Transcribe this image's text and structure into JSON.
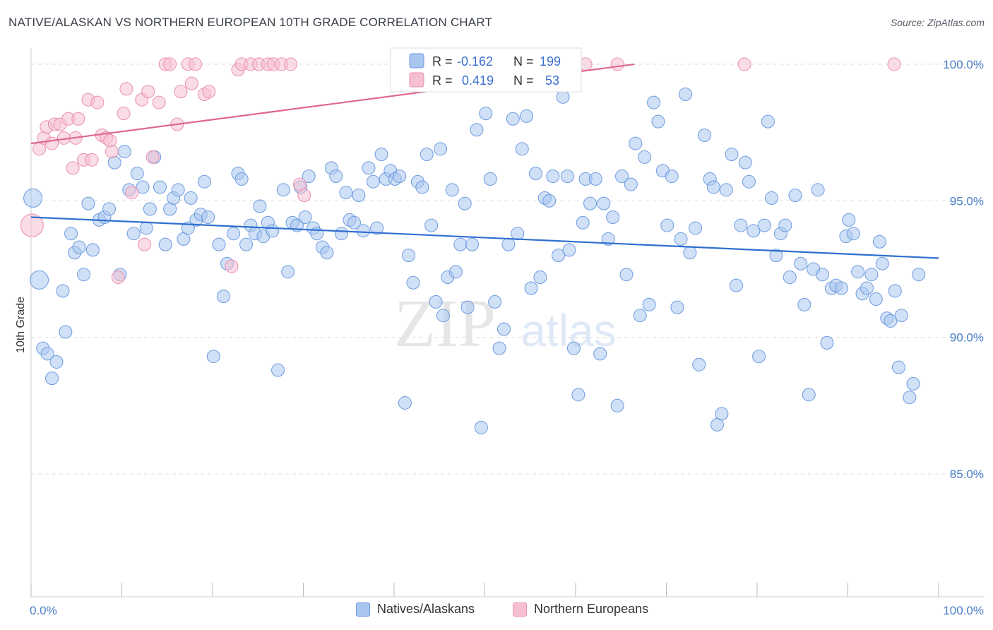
{
  "title": "NATIVE/ALASKAN VS NORTHERN EUROPEAN 10TH GRADE CORRELATION CHART",
  "source": "Source: ZipAtlas.com",
  "watermark": {
    "zip": "ZIP",
    "atlas": "atlas"
  },
  "colors": {
    "blue_fill": "#a9c6ef",
    "blue_stroke": "#6d9be0",
    "blue_line": "#2f6fcf",
    "pink_fill": "#f6bfd1",
    "pink_stroke": "#ea8fae",
    "pink_line": "#e0668f",
    "tick_text": "#4a7cc7",
    "grid": "#dddddd"
  },
  "legend_box": {
    "rows": [
      {
        "r_label": "R =",
        "r_value": "-0.162",
        "n_label": "N =",
        "n_value": "199"
      },
      {
        "r_label": "R =",
        "r_value": "0.419",
        "n_label": "N =",
        "n_value": "53"
      }
    ]
  },
  "bottom_legend": {
    "items": [
      "Natives/Alaskans",
      "Northern Europeans"
    ]
  },
  "chart_data": {
    "type": "scatter",
    "title": "NATIVE/ALASKAN VS NORTHERN EUROPEAN 10TH GRADE CORRELATION CHART",
    "xlabel": "",
    "ylabel": "10th Grade",
    "xlim": [
      0,
      100
    ],
    "ylim": [
      80.5,
      100.8
    ],
    "x_ticks": [
      0,
      10,
      20,
      30,
      40,
      50,
      60,
      70,
      80,
      90,
      100
    ],
    "x_tick_labels": {
      "min": "0.0%",
      "max": "100.0%"
    },
    "y_ticks": [
      85,
      90,
      95,
      100
    ],
    "y_tick_labels": [
      "85.0%",
      "90.0%",
      "95.0%",
      "100.0%"
    ],
    "grid": true,
    "legend": "top-center",
    "series": [
      {
        "name": "Natives/Alaskans",
        "R": -0.162,
        "N": 199,
        "trend": {
          "x": [
            0,
            100
          ],
          "y": [
            94.4,
            92.9
          ]
        },
        "points": [
          [
            0.2,
            95.1
          ],
          [
            0.9,
            92.1
          ],
          [
            1.3,
            89.6
          ],
          [
            1.8,
            89.4
          ],
          [
            2.3,
            88.5
          ],
          [
            2.8,
            89.1
          ],
          [
            3.5,
            91.7
          ],
          [
            3.8,
            90.2
          ],
          [
            4.4,
            93.8
          ],
          [
            4.8,
            93.1
          ],
          [
            5.3,
            93.3
          ],
          [
            5.8,
            92.3
          ],
          [
            6.3,
            94.9
          ],
          [
            6.8,
            93.2
          ],
          [
            7.5,
            94.3
          ],
          [
            8.1,
            94.4
          ],
          [
            8.6,
            94.7
          ],
          [
            9.2,
            96.4
          ],
          [
            9.8,
            92.3
          ],
          [
            10.3,
            96.8
          ],
          [
            10.8,
            95.4
          ],
          [
            11.3,
            93.8
          ],
          [
            11.7,
            96.0
          ],
          [
            12.3,
            95.5
          ],
          [
            12.7,
            94.0
          ],
          [
            13.1,
            94.7
          ],
          [
            13.6,
            96.6
          ],
          [
            14.2,
            95.5
          ],
          [
            14.8,
            93.4
          ],
          [
            15.3,
            94.7
          ],
          [
            15.7,
            95.1
          ],
          [
            16.2,
            95.4
          ],
          [
            16.8,
            93.6
          ],
          [
            17.3,
            94.0
          ],
          [
            17.6,
            95.1
          ],
          [
            18.2,
            94.3
          ],
          [
            18.7,
            94.5
          ],
          [
            19.1,
            95.7
          ],
          [
            19.5,
            94.4
          ],
          [
            20.1,
            89.3
          ],
          [
            20.7,
            93.4
          ],
          [
            21.2,
            91.5
          ],
          [
            21.6,
            92.7
          ],
          [
            22.3,
            93.8
          ],
          [
            22.8,
            96.0
          ],
          [
            23.2,
            95.8
          ],
          [
            23.7,
            93.4
          ],
          [
            24.2,
            94.1
          ],
          [
            24.7,
            93.8
          ],
          [
            25.2,
            94.8
          ],
          [
            25.6,
            93.7
          ],
          [
            26.1,
            94.2
          ],
          [
            26.6,
            93.9
          ],
          [
            27.2,
            88.8
          ],
          [
            27.8,
            95.4
          ],
          [
            28.3,
            92.4
          ],
          [
            28.8,
            94.2
          ],
          [
            29.3,
            94.1
          ],
          [
            29.7,
            95.5
          ],
          [
            30.2,
            94.4
          ],
          [
            30.6,
            95.9
          ],
          [
            31.1,
            94.0
          ],
          [
            31.5,
            93.8
          ],
          [
            32.1,
            93.3
          ],
          [
            32.6,
            93.1
          ],
          [
            33.1,
            96.2
          ],
          [
            33.6,
            95.9
          ],
          [
            34.2,
            93.8
          ],
          [
            34.7,
            95.3
          ],
          [
            35.1,
            94.3
          ],
          [
            35.6,
            94.2
          ],
          [
            36.1,
            95.2
          ],
          [
            36.6,
            93.9
          ],
          [
            37.2,
            96.2
          ],
          [
            37.7,
            95.7
          ],
          [
            38.1,
            94.0
          ],
          [
            38.6,
            96.7
          ],
          [
            39.1,
            95.8
          ],
          [
            39.6,
            96.1
          ],
          [
            40.1,
            95.8
          ],
          [
            40.6,
            95.9
          ],
          [
            41.2,
            87.6
          ],
          [
            41.6,
            93.0
          ],
          [
            42.1,
            92.0
          ],
          [
            42.6,
            95.7
          ],
          [
            43.1,
            95.5
          ],
          [
            43.6,
            96.7
          ],
          [
            44.1,
            94.1
          ],
          [
            44.6,
            91.3
          ],
          [
            45.1,
            96.9
          ],
          [
            45.4,
            90.8
          ],
          [
            45.9,
            92.2
          ],
          [
            46.4,
            95.4
          ],
          [
            46.8,
            92.4
          ],
          [
            47.3,
            93.4
          ],
          [
            47.8,
            94.9
          ],
          [
            48.1,
            91.1
          ],
          [
            48.6,
            93.4
          ],
          [
            49.1,
            97.6
          ],
          [
            49.6,
            86.7
          ],
          [
            50.1,
            98.2
          ],
          [
            50.6,
            95.8
          ],
          [
            51.1,
            91.3
          ],
          [
            51.6,
            89.6
          ],
          [
            52.1,
            90.3
          ],
          [
            52.6,
            93.4
          ],
          [
            53.1,
            98.0
          ],
          [
            53.6,
            93.8
          ],
          [
            54.1,
            96.9
          ],
          [
            54.6,
            98.1
          ],
          [
            55.1,
            91.8
          ],
          [
            55.6,
            96.0
          ],
          [
            56.1,
            92.2
          ],
          [
            56.6,
            95.1
          ],
          [
            57.1,
            95.0
          ],
          [
            57.5,
            95.9
          ],
          [
            58.1,
            93.0
          ],
          [
            58.6,
            98.8
          ],
          [
            59.1,
            95.9
          ],
          [
            59.3,
            93.2
          ],
          [
            59.8,
            89.6
          ],
          [
            60.3,
            87.9
          ],
          [
            60.8,
            94.2
          ],
          [
            61.1,
            95.8
          ],
          [
            61.6,
            94.9
          ],
          [
            62.2,
            95.8
          ],
          [
            62.7,
            89.4
          ],
          [
            63.1,
            94.9
          ],
          [
            63.6,
            93.6
          ],
          [
            64.1,
            94.4
          ],
          [
            64.6,
            87.5
          ],
          [
            65.1,
            95.9
          ],
          [
            65.6,
            92.3
          ],
          [
            66.1,
            95.6
          ],
          [
            66.6,
            97.1
          ],
          [
            67.1,
            90.8
          ],
          [
            67.6,
            96.6
          ],
          [
            68.1,
            91.2
          ],
          [
            68.6,
            98.6
          ],
          [
            69.1,
            97.9
          ],
          [
            69.6,
            96.1
          ],
          [
            70.1,
            94.1
          ],
          [
            70.6,
            95.9
          ],
          [
            71.2,
            91.1
          ],
          [
            71.6,
            93.6
          ],
          [
            72.1,
            98.9
          ],
          [
            72.6,
            93.1
          ],
          [
            73.2,
            94.0
          ],
          [
            73.6,
            89.0
          ],
          [
            74.2,
            97.4
          ],
          [
            74.8,
            95.8
          ],
          [
            75.2,
            95.5
          ],
          [
            75.6,
            86.8
          ],
          [
            76.1,
            87.2
          ],
          [
            76.6,
            95.4
          ],
          [
            77.2,
            96.7
          ],
          [
            77.7,
            91.9
          ],
          [
            78.2,
            94.1
          ],
          [
            78.7,
            96.4
          ],
          [
            79.1,
            95.7
          ],
          [
            79.6,
            93.9
          ],
          [
            80.2,
            89.3
          ],
          [
            80.8,
            94.1
          ],
          [
            81.2,
            97.9
          ],
          [
            81.6,
            95.1
          ],
          [
            82.1,
            93.0
          ],
          [
            82.6,
            93.8
          ],
          [
            83.1,
            94.1
          ],
          [
            83.6,
            92.2
          ],
          [
            84.2,
            95.2
          ],
          [
            84.8,
            92.7
          ],
          [
            85.2,
            91.2
          ],
          [
            85.7,
            87.9
          ],
          [
            86.2,
            92.5
          ],
          [
            86.7,
            95.4
          ],
          [
            87.2,
            92.3
          ],
          [
            87.7,
            89.8
          ],
          [
            88.2,
            91.8
          ],
          [
            88.7,
            91.9
          ],
          [
            89.3,
            91.8
          ],
          [
            89.8,
            93.7
          ],
          [
            90.1,
            94.3
          ],
          [
            90.6,
            93.8
          ],
          [
            91.1,
            92.4
          ],
          [
            91.6,
            91.6
          ],
          [
            92.1,
            91.8
          ],
          [
            92.6,
            92.3
          ],
          [
            93.1,
            91.4
          ],
          [
            93.5,
            93.5
          ],
          [
            93.8,
            92.7
          ],
          [
            94.3,
            90.7
          ],
          [
            94.7,
            90.6
          ],
          [
            95.2,
            91.7
          ],
          [
            95.6,
            88.9
          ],
          [
            95.9,
            90.8
          ],
          [
            96.8,
            87.8
          ],
          [
            97.2,
            88.3
          ],
          [
            97.8,
            92.3
          ]
        ]
      },
      {
        "name": "Northern Europeans",
        "R": 0.419,
        "N": 53,
        "trend": {
          "x": [
            0,
            66.5
          ],
          "y": [
            97.1,
            100.0
          ]
        },
        "points": [
          [
            0.1,
            94.1
          ],
          [
            0.9,
            96.9
          ],
          [
            1.4,
            97.3
          ],
          [
            1.7,
            97.7
          ],
          [
            2.3,
            97.1
          ],
          [
            2.6,
            97.8
          ],
          [
            3.2,
            97.8
          ],
          [
            3.6,
            97.3
          ],
          [
            4.1,
            98.0
          ],
          [
            4.6,
            96.2
          ],
          [
            4.9,
            97.3
          ],
          [
            5.2,
            98.0
          ],
          [
            5.8,
            96.5
          ],
          [
            6.3,
            98.7
          ],
          [
            6.7,
            96.5
          ],
          [
            7.3,
            98.6
          ],
          [
            7.8,
            97.4
          ],
          [
            8.3,
            97.3
          ],
          [
            8.7,
            97.2
          ],
          [
            8.9,
            96.8
          ],
          [
            9.6,
            92.2
          ],
          [
            10.2,
            98.2
          ],
          [
            10.5,
            99.1
          ],
          [
            11.1,
            95.3
          ],
          [
            12.2,
            98.7
          ],
          [
            12.5,
            93.4
          ],
          [
            12.9,
            99.0
          ],
          [
            13.4,
            96.6
          ],
          [
            14.1,
            98.6
          ],
          [
            14.8,
            100.0
          ],
          [
            15.3,
            100.0
          ],
          [
            16.1,
            97.8
          ],
          [
            16.5,
            99.0
          ],
          [
            17.3,
            100.0
          ],
          [
            17.7,
            99.3
          ],
          [
            18.1,
            100.0
          ],
          [
            19.1,
            98.9
          ],
          [
            19.6,
            99.0
          ],
          [
            22.1,
            92.6
          ],
          [
            22.8,
            99.8
          ],
          [
            23.2,
            100.0
          ],
          [
            24.2,
            100.0
          ],
          [
            25.1,
            100.0
          ],
          [
            26.1,
            100.0
          ],
          [
            26.7,
            100.0
          ],
          [
            27.6,
            100.0
          ],
          [
            28.6,
            100.0
          ],
          [
            29.6,
            95.6
          ],
          [
            30.1,
            95.2
          ],
          [
            61.1,
            100.0
          ],
          [
            64.6,
            100.0
          ],
          [
            78.6,
            100.0
          ],
          [
            95.1,
            100.0
          ]
        ]
      }
    ]
  }
}
